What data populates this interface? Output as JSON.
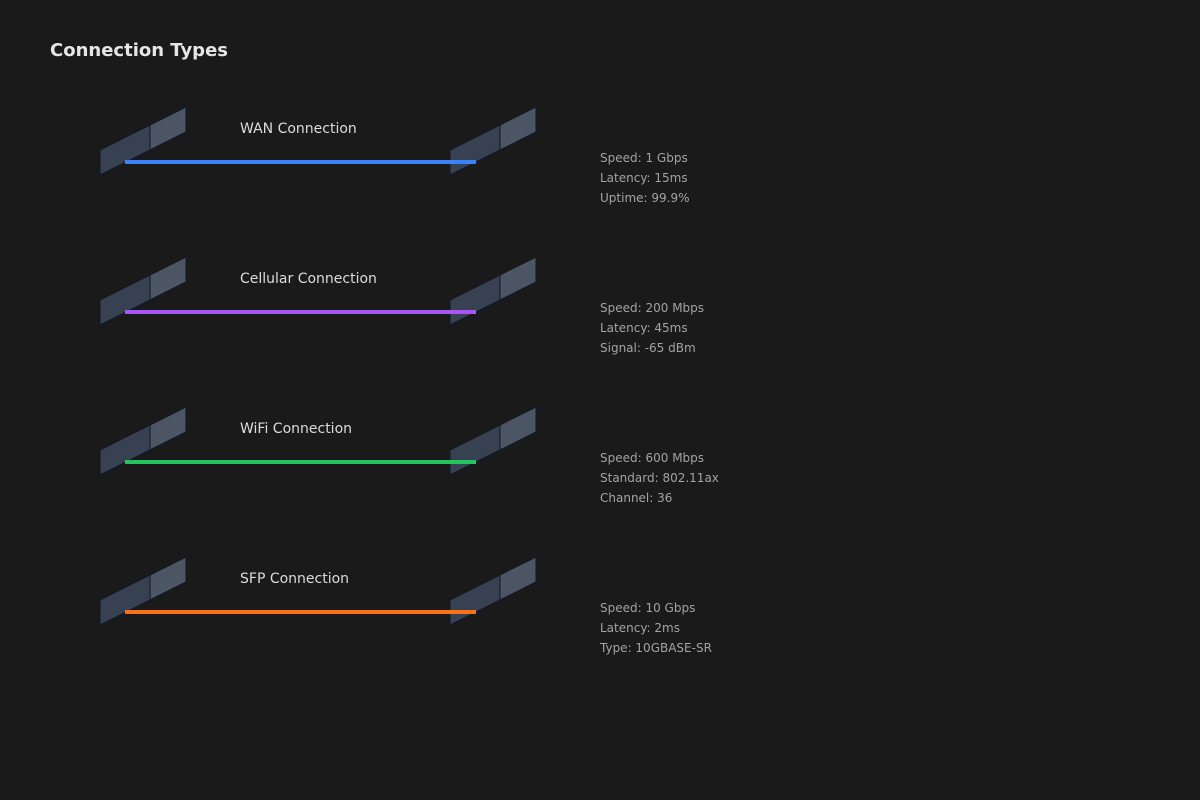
{
  "page": {
    "title": "Connection Types"
  },
  "connections": [
    {
      "id": "wan",
      "label": "WAN Connection",
      "color": "#3b82f6",
      "stats": [
        "Speed: 1 Gbps",
        "Latency: 15ms",
        "Uptime: 99.9%"
      ]
    },
    {
      "id": "cellular",
      "label": "Cellular Connection",
      "color": "#a855f7",
      "stats": [
        "Speed: 200 Mbps",
        "Latency: 45ms",
        "Signal: -65 dBm"
      ]
    },
    {
      "id": "wifi",
      "label": "WiFi Connection",
      "color": "#22c55e",
      "stats": [
        "Speed: 600 Mbps",
        "Standard: 802.11ax",
        "Channel: 36"
      ]
    },
    {
      "id": "sfp",
      "label": "SFP Connection",
      "color": "#f97316",
      "stats": [
        "Speed: 10 Gbps",
        "Latency: 2ms",
        "Type: 10GBASE-SR"
      ]
    }
  ],
  "colors": {
    "background": "#1a1a1a",
    "node_front": "#374151",
    "node_back": "#4b5563",
    "node_stroke": "#111827"
  }
}
